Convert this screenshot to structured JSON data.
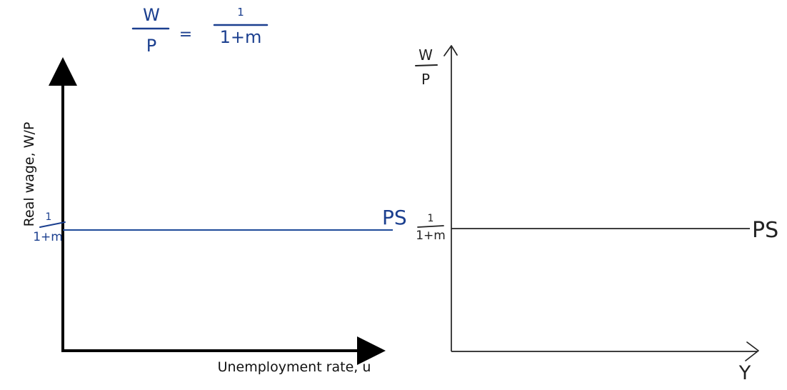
{
  "colors": {
    "background": "#ffffff",
    "ink_blue": "#1b3f8f",
    "ink_black": "#222222",
    "axis_black": "#000000",
    "ps_line_blue": "#1f4a9a"
  },
  "header_equation": {
    "lhs_numerator": "W",
    "lhs_denominator": "P",
    "equals": "=",
    "rhs_numerator": "1",
    "rhs_denominator": "1+m"
  },
  "left_diagram": {
    "y_axis_label": "Real wage, W/P",
    "x_axis_label": "Unemployment rate, u",
    "ps_label": "PS",
    "level_numerator": "1",
    "level_denominator": "1+m"
  },
  "right_diagram": {
    "y_axis_numerator": "W",
    "y_axis_denominator": "P",
    "x_axis_label": "Y",
    "ps_label": "PS",
    "level_numerator": "1",
    "level_denominator": "1+m"
  }
}
